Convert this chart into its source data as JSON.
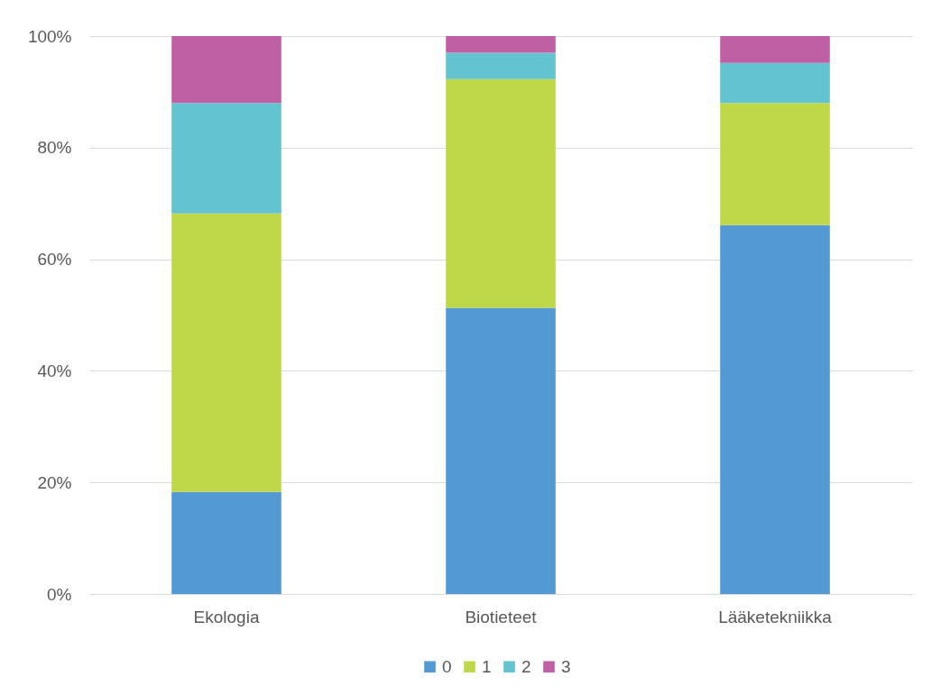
{
  "chart_data": {
    "type": "bar",
    "stacked": true,
    "categories": [
      "Ekologia",
      "Biotieteet",
      "Lääketekniikka"
    ],
    "series": [
      {
        "name": "0",
        "color": "#5399d4",
        "values": [
          18.3,
          51.3,
          66.1
        ]
      },
      {
        "name": "1",
        "color": "#bfd84a",
        "values": [
          49.9,
          41.0,
          21.9
        ]
      },
      {
        "name": "2",
        "color": "#64c3d0",
        "values": [
          19.8,
          4.7,
          7.2
        ]
      },
      {
        "name": "3",
        "color": "#bf60a5",
        "values": [
          12.0,
          3.0,
          4.8
        ]
      }
    ],
    "ylim": [
      0,
      100
    ],
    "yticks": [
      {
        "value": 0,
        "label": "0%"
      },
      {
        "value": 20,
        "label": "20%"
      },
      {
        "value": 40,
        "label": "40%"
      },
      {
        "value": 60,
        "label": "60%"
      },
      {
        "value": 80,
        "label": "80%"
      },
      {
        "value": 100,
        "label": "100%"
      }
    ],
    "grid": "y",
    "legend": "bottom"
  }
}
